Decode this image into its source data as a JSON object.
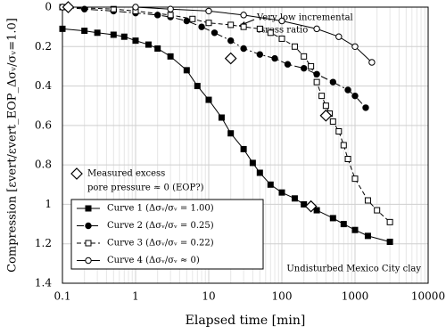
{
  "chart_data": {
    "type": "line",
    "xlabel": "Elapsed time [min]",
    "ylabel": "Compression [εvert/εvert_EOP_Δσᵥ/σᵥ=1.0]",
    "xscale": "log",
    "y_inverted": true,
    "grid": true,
    "xlim": [
      0.1,
      10000
    ],
    "xticks": [
      0.1,
      1,
      10,
      100,
      1000,
      10000
    ],
    "ylim": [
      0,
      1.4
    ],
    "yticks": [
      0,
      0.2,
      0.4,
      0.6,
      0.8,
      1,
      1.2,
      1.4
    ],
    "series": [
      {
        "name": "Curve 1  (Δσᵥ/σᵥ = 1.00)",
        "color": "#000000",
        "marker": "square-filled",
        "dash": "",
        "x": [
          0.1,
          0.2,
          0.3,
          0.5,
          0.7,
          1,
          1.5,
          2,
          3,
          5,
          7,
          10,
          15,
          20,
          30,
          40,
          50,
          70,
          100,
          150,
          200,
          300,
          500,
          700,
          1000,
          1500,
          3000
        ],
        "values": [
          0.11,
          0.12,
          0.13,
          0.14,
          0.15,
          0.17,
          0.19,
          0.21,
          0.25,
          0.32,
          0.4,
          0.47,
          0.56,
          0.64,
          0.72,
          0.79,
          0.84,
          0.9,
          0.94,
          0.97,
          1.0,
          1.03,
          1.07,
          1.1,
          1.13,
          1.16,
          1.19
        ]
      },
      {
        "name": "Curve 2  (Δσᵥ/σᵥ = 0.25)",
        "color": "#000000",
        "marker": "circle-filled",
        "dash": "8 3 2 3",
        "x": [
          0.1,
          0.2,
          0.5,
          1,
          2,
          3,
          5,
          8,
          12,
          20,
          30,
          50,
          80,
          120,
          200,
          300,
          500,
          800,
          1000,
          1400
        ],
        "values": [
          0,
          0.01,
          0.02,
          0.03,
          0.04,
          0.05,
          0.07,
          0.1,
          0.13,
          0.17,
          0.21,
          0.24,
          0.26,
          0.29,
          0.31,
          0.34,
          0.38,
          0.42,
          0.45,
          0.51
        ]
      },
      {
        "name": "Curve 3  (Δσᵥ/σᵥ = 0.22)",
        "color": "#000000",
        "marker": "square-open",
        "dash": "5 3",
        "x": [
          0.1,
          0.5,
          1,
          3,
          6,
          10,
          20,
          30,
          50,
          70,
          100,
          150,
          200,
          250,
          300,
          350,
          400,
          450,
          500,
          600,
          700,
          800,
          1000,
          1500,
          2000,
          3000
        ],
        "values": [
          0,
          0.01,
          0.02,
          0.04,
          0.06,
          0.08,
          0.09,
          0.1,
          0.11,
          0.13,
          0.16,
          0.2,
          0.25,
          0.3,
          0.38,
          0.45,
          0.5,
          0.54,
          0.58,
          0.63,
          0.7,
          0.77,
          0.87,
          0.98,
          1.03,
          1.09
        ]
      },
      {
        "name": "Curve 4  (Δσᵥ/σᵥ ≈ 0)",
        "color": "#000000",
        "marker": "circle-open",
        "dash": "",
        "x": [
          0.1,
          1,
          3,
          10,
          30,
          100,
          300,
          600,
          1000,
          1700
        ],
        "values": [
          0,
          0,
          0.01,
          0.02,
          0.04,
          0.07,
          0.11,
          0.15,
          0.2,
          0.28
        ]
      }
    ],
    "eop_points": {
      "label_lines": [
        "Measured excess",
        "pore pressure ≈ 0  (EOP?)"
      ],
      "x": [
        0.12,
        20,
        400,
        250
      ],
      "values": [
        0,
        0.26,
        0.55,
        1.01
      ]
    },
    "annotations": {
      "stress_note": [
        "Very low incremental",
        "stress ratio"
      ],
      "material": "Undisturbed Mexico City clay"
    }
  }
}
